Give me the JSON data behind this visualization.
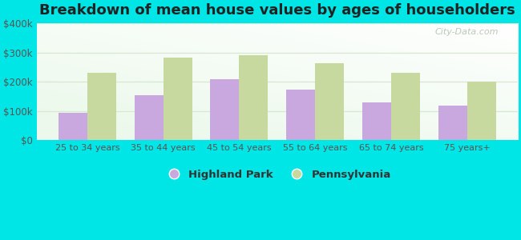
{
  "title": "Breakdown of mean house values by ages of householders",
  "categories": [
    "25 to 34 years",
    "35 to 44 years",
    "45 to 54 years",
    "55 to 64 years",
    "65 to 74 years",
    "75 years+"
  ],
  "highland_park": [
    93000,
    155000,
    210000,
    173000,
    130000,
    118000
  ],
  "pennsylvania": [
    230000,
    283000,
    291000,
    265000,
    232000,
    200000
  ],
  "highland_park_color": "#c9a8e0",
  "pennsylvania_color": "#c8d9a0",
  "background_color": "#00e5e5",
  "ylim": [
    0,
    400000
  ],
  "yticks": [
    0,
    100000,
    200000,
    300000,
    400000
  ],
  "ytick_labels": [
    "$0",
    "$100k",
    "$200k",
    "$300k",
    "$400k"
  ],
  "legend_highland_park": "Highland Park",
  "legend_pennsylvania": "Pennsylvania",
  "title_fontsize": 13,
  "bar_width": 0.38,
  "grid_color": "#d8e8d0",
  "watermark": "City-Data.com",
  "watermark_color": "#b0c0b0"
}
